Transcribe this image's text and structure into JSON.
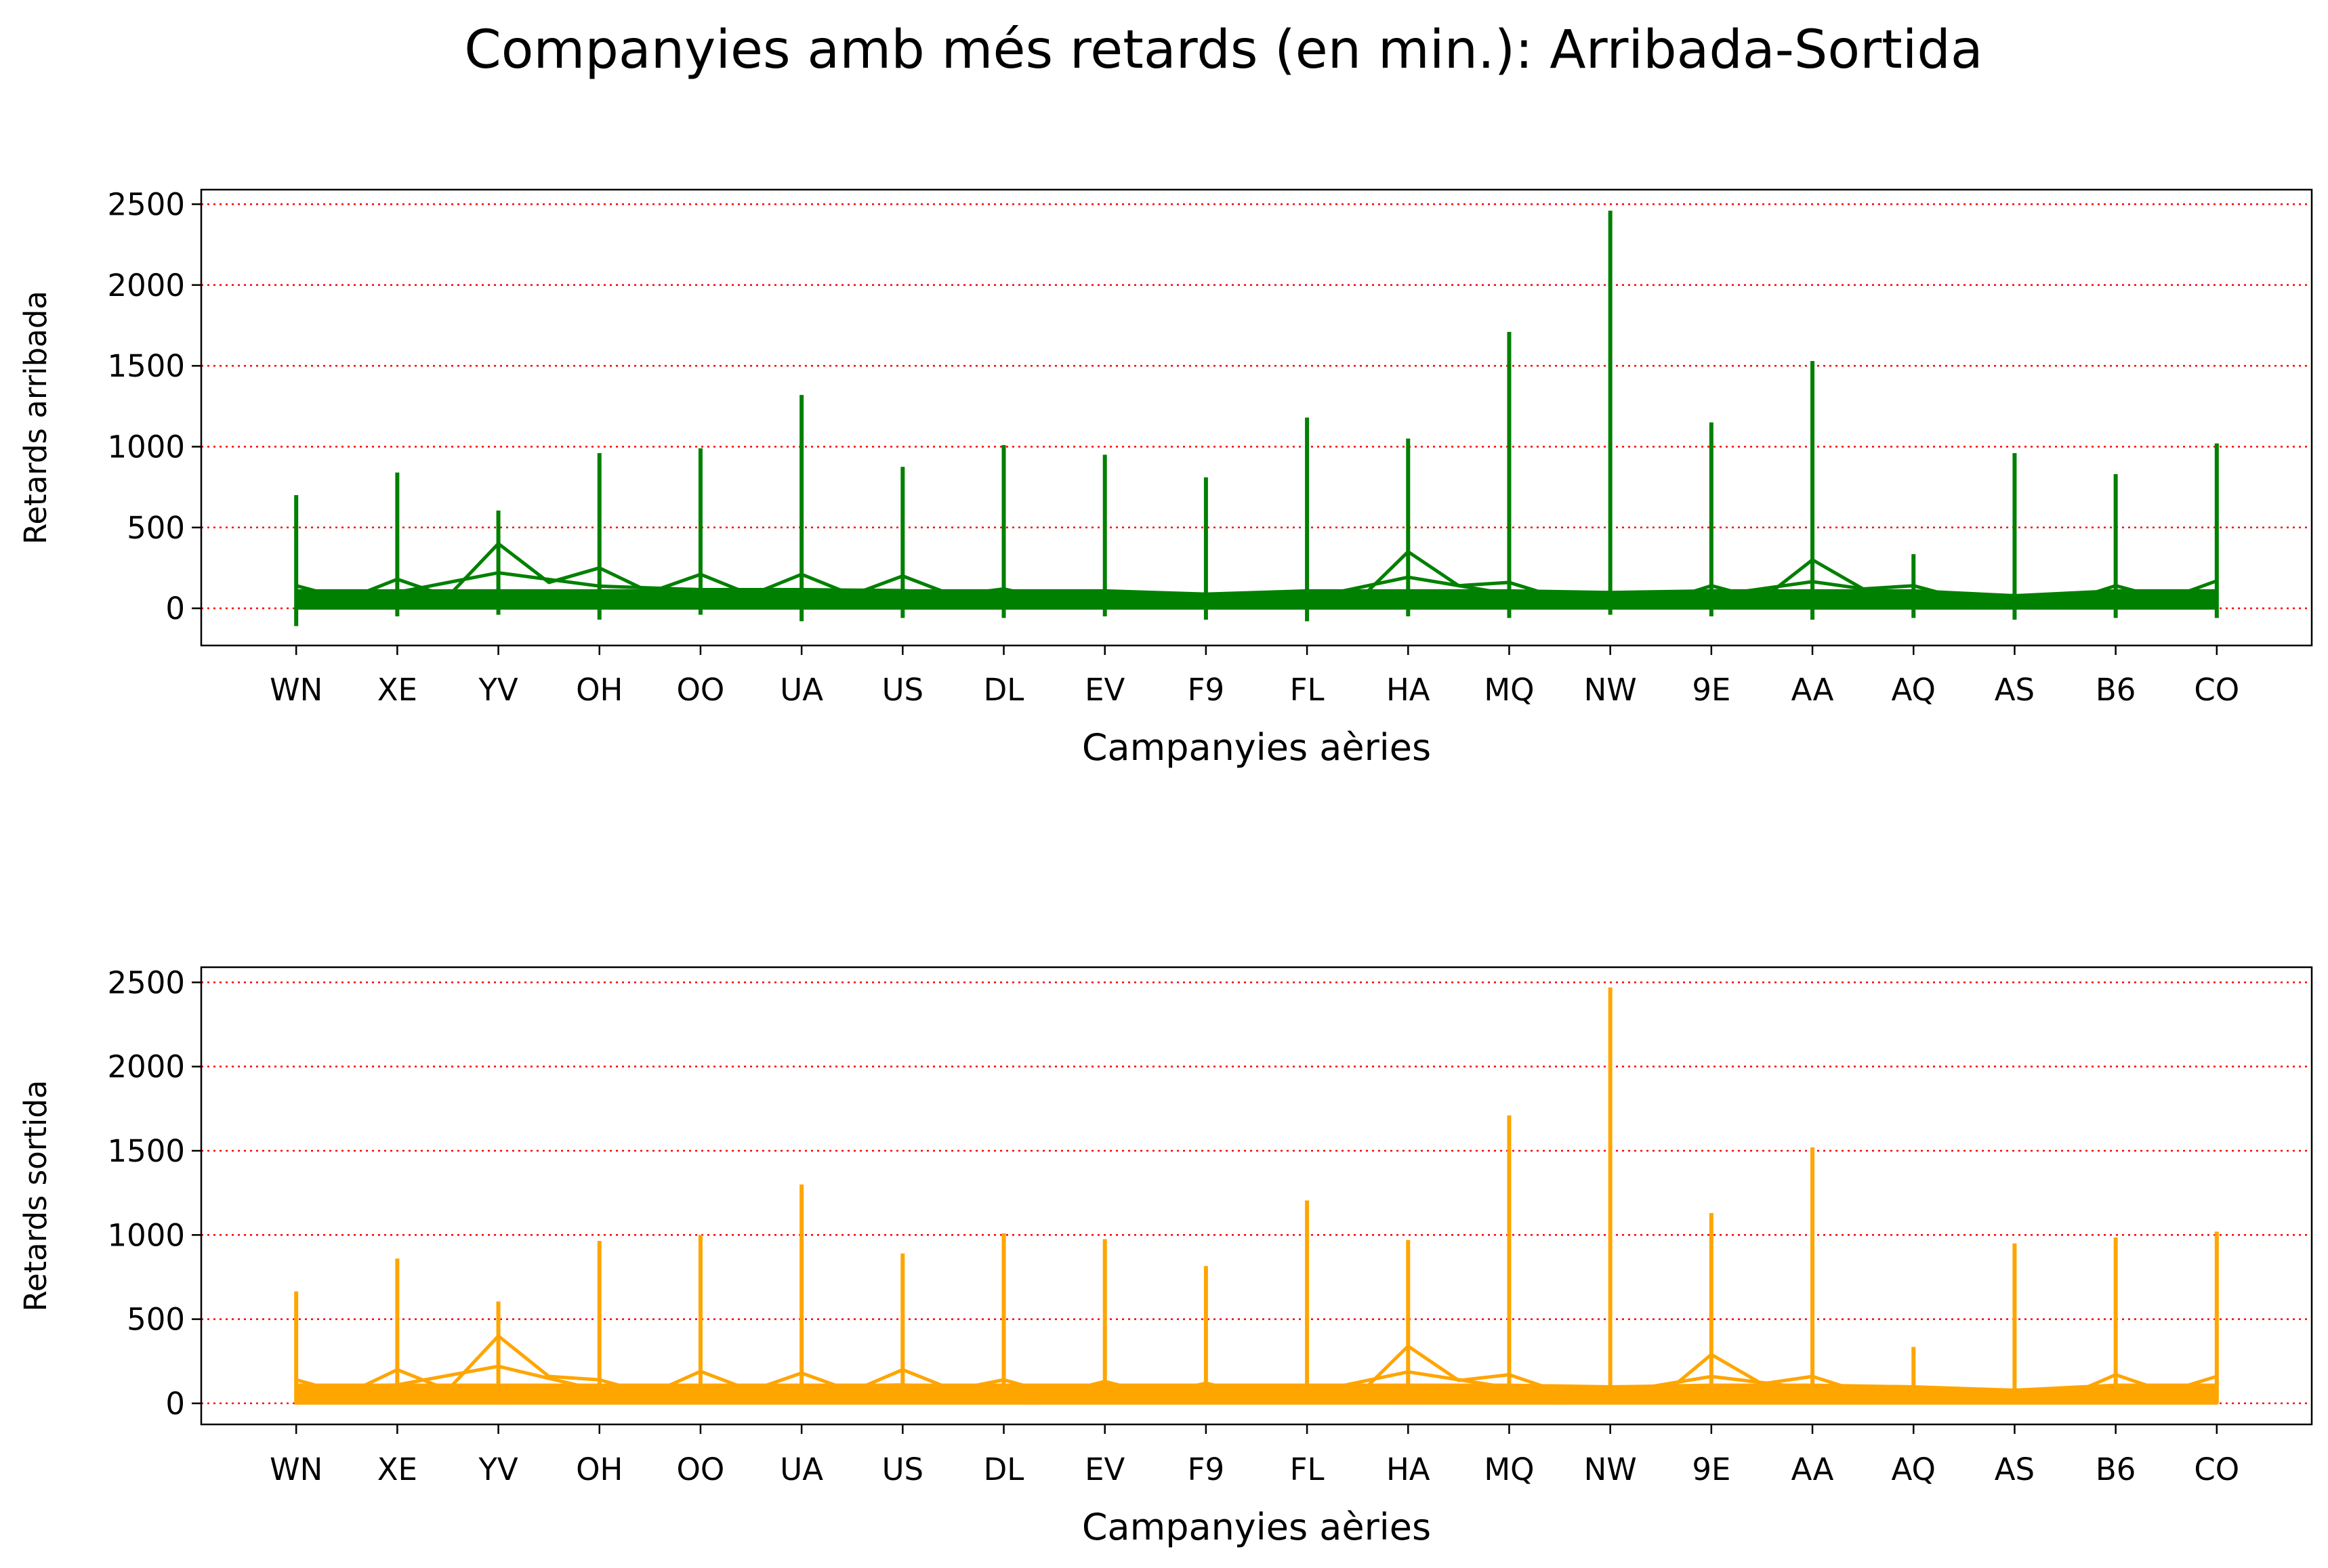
{
  "figure": {
    "title": "Companyies amb més retards (en min.): Arribada-Sortida"
  },
  "chart_data": [
    {
      "type": "line",
      "xlabel": "Campanyies aèries",
      "ylabel": "Retards arribada",
      "color": "#008000",
      "grid": "horizontal dotted red",
      "ylim": [
        -230,
        2590
      ],
      "yticks": [
        0,
        500,
        1000,
        1500,
        2000,
        2500
      ],
      "categories": [
        "WN",
        "XE",
        "YV",
        "OH",
        "OO",
        "UA",
        "US",
        "DL",
        "EV",
        "F9",
        "FL",
        "HA",
        "MQ",
        "NW",
        "9E",
        "AA",
        "AQ",
        "AS",
        "B6",
        "CO"
      ],
      "max_values": [
        700,
        840,
        605,
        960,
        990,
        1320,
        875,
        1010,
        950,
        810,
        1180,
        1050,
        1710,
        2460,
        1150,
        1530,
        335,
        960,
        830,
        1020
      ],
      "min_values": [
        -110,
        -50,
        -40,
        -70,
        -40,
        -80,
        -60,
        -60,
        -50,
        -70,
        -80,
        -50,
        -60,
        -40,
        -50,
        -70,
        -60,
        -70,
        -60,
        -60
      ],
      "zigzag_values": [
        140,
        180,
        400,
        250,
        210,
        210,
        200,
        120,
        110,
        90,
        110,
        350,
        160,
        100,
        140,
        300,
        140,
        80,
        140,
        170
      ]
    },
    {
      "type": "line",
      "xlabel": "Campanyies aèries",
      "ylabel": "Retards sortida",
      "color": "#FFA500",
      "grid": "horizontal dotted red",
      "ylim": [
        -125,
        2590
      ],
      "yticks": [
        0,
        500,
        1000,
        1500,
        2000,
        2500
      ],
      "categories": [
        "WN",
        "XE",
        "YV",
        "OH",
        "OO",
        "UA",
        "US",
        "DL",
        "EV",
        "F9",
        "FL",
        "HA",
        "MQ",
        "NW",
        "9E",
        "AA",
        "AQ",
        "AS",
        "B6",
        "CO"
      ],
      "max_values": [
        665,
        860,
        605,
        965,
        1000,
        1300,
        890,
        1010,
        975,
        815,
        1205,
        970,
        1710,
        2470,
        1130,
        1520,
        335,
        950,
        985,
        1020
      ],
      "min_values": [
        0,
        0,
        0,
        0,
        0,
        0,
        0,
        0,
        0,
        0,
        0,
        0,
        0,
        0,
        0,
        0,
        0,
        0,
        0,
        0
      ],
      "zigzag_values": [
        140,
        200,
        400,
        140,
        190,
        180,
        200,
        140,
        130,
        120,
        110,
        340,
        170,
        100,
        290,
        160,
        100,
        80,
        170,
        160
      ]
    }
  ]
}
